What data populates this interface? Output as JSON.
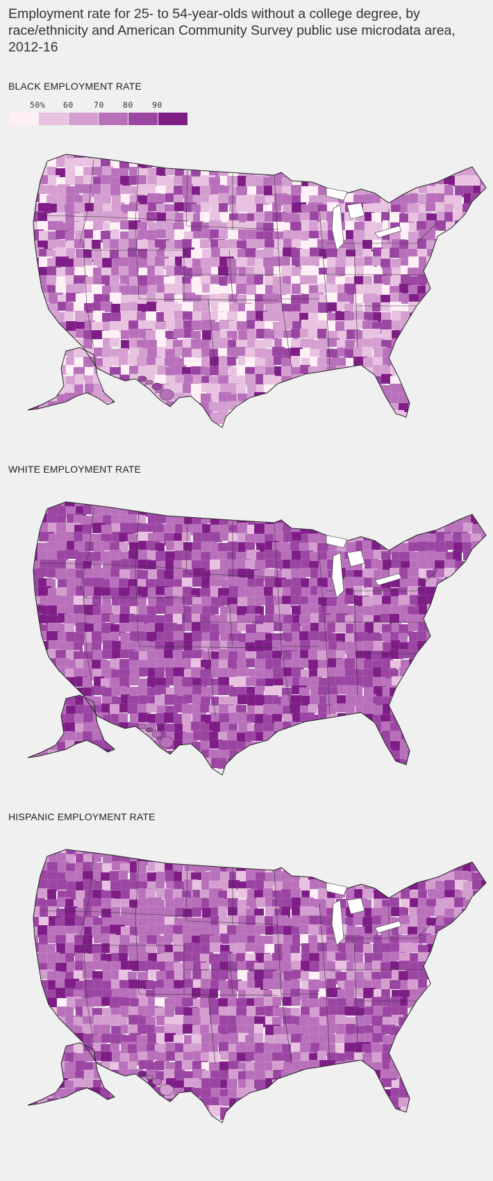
{
  "title": "Employment rate for 25- to 54-year-olds without a college degree, by race/ethnicity and American Community Survey public use microdata area, 2012-16",
  "legend": {
    "labels": [
      "50%",
      "60",
      "70",
      "80",
      "90"
    ],
    "colors": [
      "#fff0f6",
      "#e8c2e0",
      "#d49fd0",
      "#b870bb",
      "#9b45a3",
      "#7e1d86"
    ]
  },
  "maps": [
    {
      "label": "BLACK EMPLOYMENT RATE",
      "key": "black"
    },
    {
      "label": "WHITE EMPLOYMENT RATE",
      "key": "white"
    },
    {
      "label": "HISPANIC EMPLOYMENT RATE",
      "key": "hispanic"
    }
  ]
}
